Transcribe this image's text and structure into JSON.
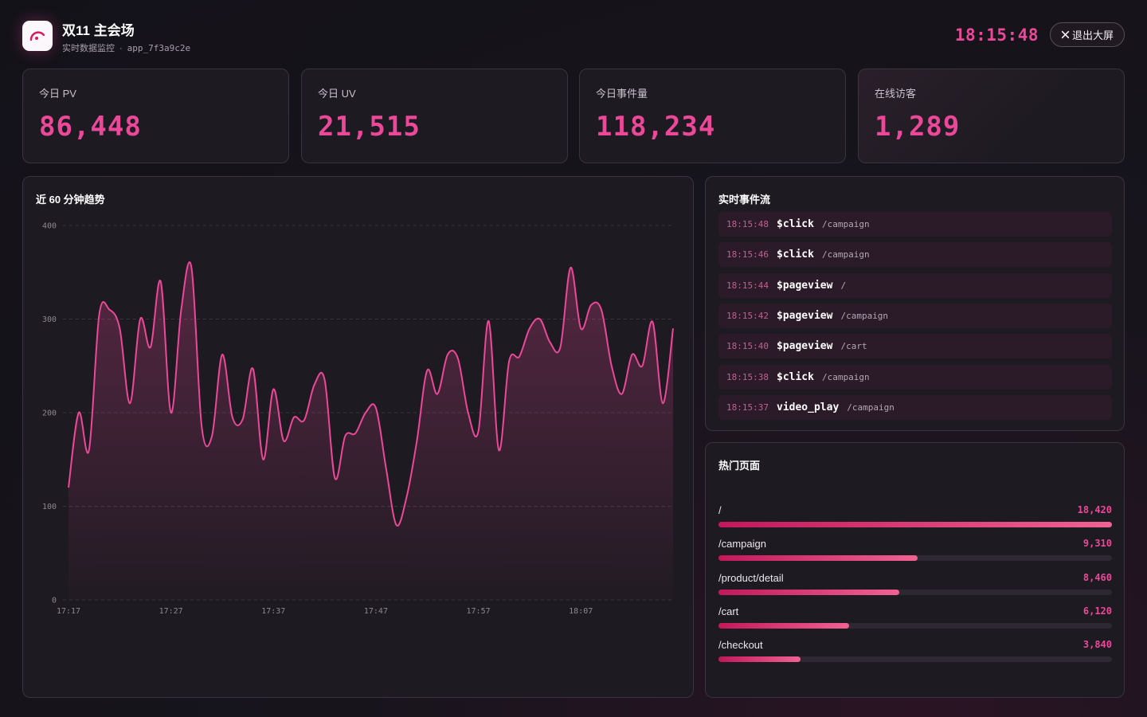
{
  "header": {
    "title": "双11 主会场",
    "subtitle": "实时数据监控",
    "subtitle_sep": "·",
    "app_id": "app_7f3a9c2e",
    "clock": "18:15:48",
    "exit_label": "退出大屏",
    "logo_icon": "gauge-icon",
    "exit_icon": "close-icon"
  },
  "kpis": [
    {
      "label": "今日 PV",
      "value": "86,448"
    },
    {
      "label": "今日 UV",
      "value": "21,515"
    },
    {
      "label": "今日事件量",
      "value": "118,234"
    },
    {
      "label": "在线访客",
      "value": "1,289"
    }
  ],
  "trend": {
    "title": "近 60 分钟趋势"
  },
  "chart_data": {
    "type": "area",
    "xlabel": "",
    "ylabel": "",
    "ylim": [
      0,
      400
    ],
    "yticks": [
      0,
      100,
      200,
      300,
      400
    ],
    "xtick_labels": [
      "17:17",
      "17:27",
      "17:37",
      "17:47",
      "17:57",
      "18:07"
    ],
    "grid": true,
    "color": "#ec4899",
    "x": [
      "17:17",
      "17:18",
      "17:19",
      "17:20",
      "17:21",
      "17:22",
      "17:23",
      "17:24",
      "17:25",
      "17:26",
      "17:27",
      "17:28",
      "17:29",
      "17:30",
      "17:31",
      "17:32",
      "17:33",
      "17:34",
      "17:35",
      "17:36",
      "17:37",
      "17:38",
      "17:39",
      "17:40",
      "17:41",
      "17:42",
      "17:43",
      "17:44",
      "17:45",
      "17:46",
      "17:47",
      "17:48",
      "17:49",
      "17:50",
      "17:51",
      "17:52",
      "17:53",
      "17:54",
      "17:55",
      "17:56",
      "17:57",
      "17:58",
      "17:59",
      "18:00",
      "18:01",
      "18:02",
      "18:03",
      "18:04",
      "18:05",
      "18:06",
      "18:07",
      "18:08",
      "18:09",
      "18:10",
      "18:11",
      "18:12",
      "18:13",
      "18:14",
      "18:15",
      "18:16"
    ],
    "series": [
      {
        "values": [
          120,
          200,
          160,
          305,
          310,
          290,
          210,
          300,
          270,
          340,
          200,
          310,
          355,
          185,
          175,
          262,
          195,
          193,
          247,
          150,
          225,
          170,
          195,
          192,
          230,
          235,
          130,
          175,
          178,
          200,
          205,
          140,
          80,
          110,
          170,
          245,
          220,
          262,
          258,
          200,
          180,
          298,
          160,
          255,
          260,
          290,
          300,
          275,
          270,
          355,
          290,
          315,
          310,
          250,
          220,
          262,
          250,
          297,
          210,
          290
        ]
      }
    ]
  },
  "events": {
    "title": "实时事件流",
    "items": [
      {
        "time": "18:15:48",
        "name": "$click",
        "path": "/campaign"
      },
      {
        "time": "18:15:46",
        "name": "$click",
        "path": "/campaign"
      },
      {
        "time": "18:15:44",
        "name": "$pageview",
        "path": "/"
      },
      {
        "time": "18:15:42",
        "name": "$pageview",
        "path": "/campaign"
      },
      {
        "time": "18:15:40",
        "name": "$pageview",
        "path": "/cart"
      },
      {
        "time": "18:15:38",
        "name": "$click",
        "path": "/campaign"
      },
      {
        "time": "18:15:37",
        "name": "video_play",
        "path": "/campaign"
      }
    ]
  },
  "pages": {
    "title": "热门页面",
    "items": [
      {
        "name": "/",
        "count": "18,420",
        "value": 18420
      },
      {
        "name": "/campaign",
        "count": "9,310",
        "value": 9310
      },
      {
        "name": "/product/detail",
        "count": "8,460",
        "value": 8460
      },
      {
        "name": "/cart",
        "count": "6,120",
        "value": 6120
      },
      {
        "name": "/checkout",
        "count": "3,840",
        "value": 3840
      }
    ]
  }
}
